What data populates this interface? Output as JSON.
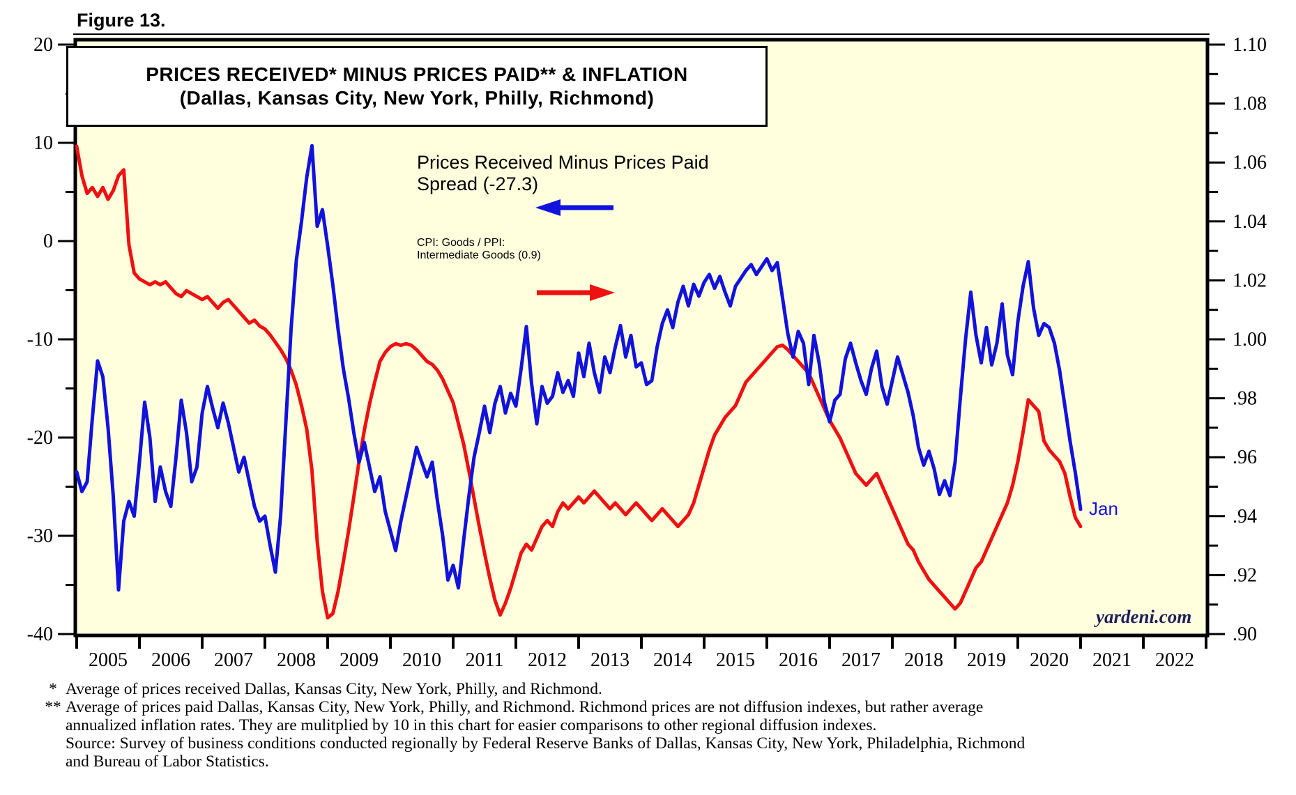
{
  "header": {
    "figure_label": "Figure 13."
  },
  "title": {
    "line1": "PRICES RECEIVED* MINUS PRICES PAID** & INFLATION",
    "line2": "(Dallas, Kansas City, New York, Philly, Richmond)"
  },
  "legend": {
    "series1_line1": "Prices Received Minus Prices Paid",
    "series1_line2": "Spread (-27.3)",
    "series2_line1": "CPI: Goods / PPI:",
    "series2_line2": "Intermediate Goods (0.9)"
  },
  "annotations": {
    "last_point_label": "Jan",
    "watermark": "yardeni.com"
  },
  "colors": {
    "spread_line": "#1212dd",
    "inflation_line": "#ee1111",
    "plot_background": "#ffffde",
    "frame": "#000000",
    "watermark_text": "#1d1d5e"
  },
  "footnotes": [
    {
      "marker": "*",
      "text": "Average of prices received Dallas, Kansas City, New York, Philly, and Richmond."
    },
    {
      "marker": "**",
      "text": "Average of prices paid Dallas, Kansas City, New York, Philly, and Richmond. Richmond prices are not diffusion indexes, but rather average annualized inflation rates. They are mulitplied by 10 in this chart for easier comparisons to other regional diffusion indexes."
    },
    {
      "marker": "",
      "text": "Source: Survey of business conditions conducted regionally by Federal Reserve Banks of Dallas, Kansas City, New York, Philadelphia, Richmond and Bureau of Labor Statistics."
    }
  ],
  "chart_data": {
    "type": "line",
    "title": "PRICES RECEIVED* MINUS PRICES PAID** & INFLATION (Dallas, Kansas City, New York, Philly, Richmond)",
    "frequency": "monthly",
    "x_start": "2005-01",
    "x_end": "2021-01",
    "x_year_labels": [
      "2005",
      "2006",
      "2007",
      "2008",
      "2009",
      "2010",
      "2011",
      "2012",
      "2013",
      "2014",
      "2015",
      "2016",
      "2017",
      "2018",
      "2019",
      "2020",
      "2021",
      "2022"
    ],
    "left_axis": {
      "ticks": [
        "20",
        "10",
        "0",
        "-10",
        "-20",
        "-30",
        "-40"
      ],
      "range": [
        -40,
        20
      ],
      "minor_step": 5
    },
    "right_axis": {
      "ticks": [
        "1.10",
        "1.08",
        "1.06",
        "1.04",
        "1.02",
        "1.00",
        ".98",
        ".96",
        ".94",
        ".92",
        ".90"
      ],
      "range": [
        0.9,
        1.1
      ],
      "minor_step": 0.01
    },
    "grid": false,
    "legend_position": "inside-top",
    "series": [
      {
        "name": "Prices Received Minus Prices Paid Spread",
        "axis": "left",
        "last_value": -27.3,
        "values": [
          -23.5,
          -25.5,
          -24.5,
          -18,
          -12.2,
          -13.8,
          -19,
          -26,
          -35.5,
          -28.5,
          -26.5,
          -28,
          -22.5,
          -16.4,
          -20,
          -26.5,
          -23,
          -25.5,
          -27,
          -22,
          -16.2,
          -19.5,
          -24.5,
          -23,
          -17.5,
          -14.8,
          -17,
          -19,
          -16.5,
          -18.5,
          -21,
          -23.5,
          -22,
          -24.5,
          -27,
          -28.5,
          -28,
          -31,
          -33.7,
          -28,
          -18.5,
          -9,
          -2,
          2,
          6.5,
          9.7,
          1.5,
          3.2,
          -0.5,
          -4.5,
          -9,
          -13,
          -16,
          -19.5,
          -22.5,
          -20.5,
          -23,
          -25.5,
          -24,
          -27.5,
          -29.5,
          -31.5,
          -28.5,
          -26,
          -23.5,
          -21,
          -22.5,
          -24,
          -22.5,
          -26.5,
          -30,
          -34.5,
          -33,
          -35.3,
          -30.5,
          -26,
          -22,
          -19.5,
          -16.8,
          -19.5,
          -16.5,
          -14.8,
          -17.5,
          -15.5,
          -16.8,
          -13,
          -8.7,
          -14.5,
          -18.6,
          -14.8,
          -16.5,
          -15.8,
          -13.4,
          -15.4,
          -14.2,
          -15.8,
          -11.4,
          -13.8,
          -10.4,
          -13.4,
          -15.4,
          -11.8,
          -13.4,
          -10.8,
          -8.6,
          -11.8,
          -9.6,
          -12.8,
          -12.4,
          -14.6,
          -14.2,
          -10.8,
          -8.4,
          -7,
          -8.8,
          -6.2,
          -4.6,
          -6.6,
          -4.4,
          -5.6,
          -4.2,
          -3.4,
          -4.8,
          -3.6,
          -5.2,
          -6.6,
          -4.6,
          -3.8,
          -3,
          -2.4,
          -3.4,
          -2.6,
          -1.8,
          -3,
          -2.2,
          -5.8,
          -9.4,
          -11.8,
          -9.2,
          -10.4,
          -14.6,
          -9.6,
          -12.4,
          -16.4,
          -18.4,
          -16.2,
          -15.6,
          -12,
          -10.4,
          -12.4,
          -14.2,
          -15.6,
          -13,
          -11.2,
          -14.8,
          -16.6,
          -14.2,
          -11.8,
          -13.6,
          -15.4,
          -17.8,
          -21,
          -22.8,
          -21.4,
          -23.2,
          -25.8,
          -24.4,
          -25.9,
          -22.5,
          -16,
          -10,
          -5.2,
          -9.6,
          -12.4,
          -8.8,
          -12.6,
          -10.4,
          -6.4,
          -11.6,
          -13.6,
          -8.2,
          -4.6,
          -2.1,
          -6.8,
          -9.6,
          -8.4,
          -8.8,
          -10.4,
          -13.2,
          -16.8,
          -20.4,
          -23.6,
          -27.3
        ]
      },
      {
        "name": "CPI: Goods / PPI: Intermediate Goods",
        "axis": "right",
        "last_value": 0.9,
        "values": [
          1.0655,
          1.0555,
          1.0495,
          1.0515,
          1.0485,
          1.0515,
          1.0475,
          1.0505,
          1.0555,
          1.0575,
          1.032,
          1.0225,
          1.0205,
          1.0195,
          1.0185,
          1.0195,
          1.0185,
          1.0195,
          1.0175,
          1.0155,
          1.0145,
          1.0165,
          1.0155,
          1.0145,
          1.0135,
          1.0145,
          1.0125,
          1.0105,
          1.0125,
          1.0135,
          1.0115,
          1.0095,
          1.0075,
          1.0055,
          1.0065,
          1.0045,
          1.0035,
          1.0015,
          0.999,
          0.9965,
          0.9935,
          0.9895,
          0.9845,
          0.9775,
          0.9695,
          0.9555,
          0.9315,
          0.9145,
          0.9055,
          0.907,
          0.9145,
          0.9245,
          0.935,
          0.9465,
          0.9585,
          0.969,
          0.978,
          0.9855,
          0.9925,
          0.9955,
          0.9975,
          0.9985,
          0.998,
          0.9985,
          0.998,
          0.9965,
          0.9945,
          0.9925,
          0.9915,
          0.9895,
          0.9865,
          0.9825,
          0.9785,
          0.9715,
          0.9645,
          0.9555,
          0.946,
          0.9365,
          0.9275,
          0.919,
          0.9115,
          0.9065,
          0.9105,
          0.9155,
          0.9215,
          0.9275,
          0.9305,
          0.9285,
          0.9325,
          0.9365,
          0.9385,
          0.9365,
          0.9415,
          0.9445,
          0.9425,
          0.9445,
          0.9465,
          0.9445,
          0.9465,
          0.9485,
          0.9465,
          0.9445,
          0.9425,
          0.9445,
          0.9425,
          0.9405,
          0.9425,
          0.9445,
          0.9425,
          0.9405,
          0.9385,
          0.9405,
          0.9425,
          0.9405,
          0.9385,
          0.9365,
          0.9385,
          0.9405,
          0.9445,
          0.9505,
          0.9565,
          0.9625,
          0.9675,
          0.9705,
          0.9735,
          0.9755,
          0.9775,
          0.9815,
          0.9855,
          0.9875,
          0.9895,
          0.9915,
          0.9935,
          0.9955,
          0.9975,
          0.998,
          0.9965,
          0.9945,
          0.9925,
          0.9905,
          0.9885,
          0.9845,
          0.9805,
          0.9765,
          0.9725,
          0.9695,
          0.9665,
          0.9625,
          0.9585,
          0.9545,
          0.9525,
          0.9505,
          0.9525,
          0.9545,
          0.9505,
          0.9465,
          0.9425,
          0.9385,
          0.9345,
          0.9305,
          0.9285,
          0.9245,
          0.9215,
          0.9185,
          0.9165,
          0.9145,
          0.9125,
          0.9105,
          0.9085,
          0.9105,
          0.9145,
          0.9185,
          0.9225,
          0.9245,
          0.9285,
          0.9325,
          0.9365,
          0.9405,
          0.9445,
          0.9505,
          0.9585,
          0.9685,
          0.9795,
          0.9775,
          0.9755,
          0.9655,
          0.9625,
          0.9605,
          0.9585,
          0.9545,
          0.9465,
          0.9395,
          0.9365
        ]
      }
    ]
  }
}
